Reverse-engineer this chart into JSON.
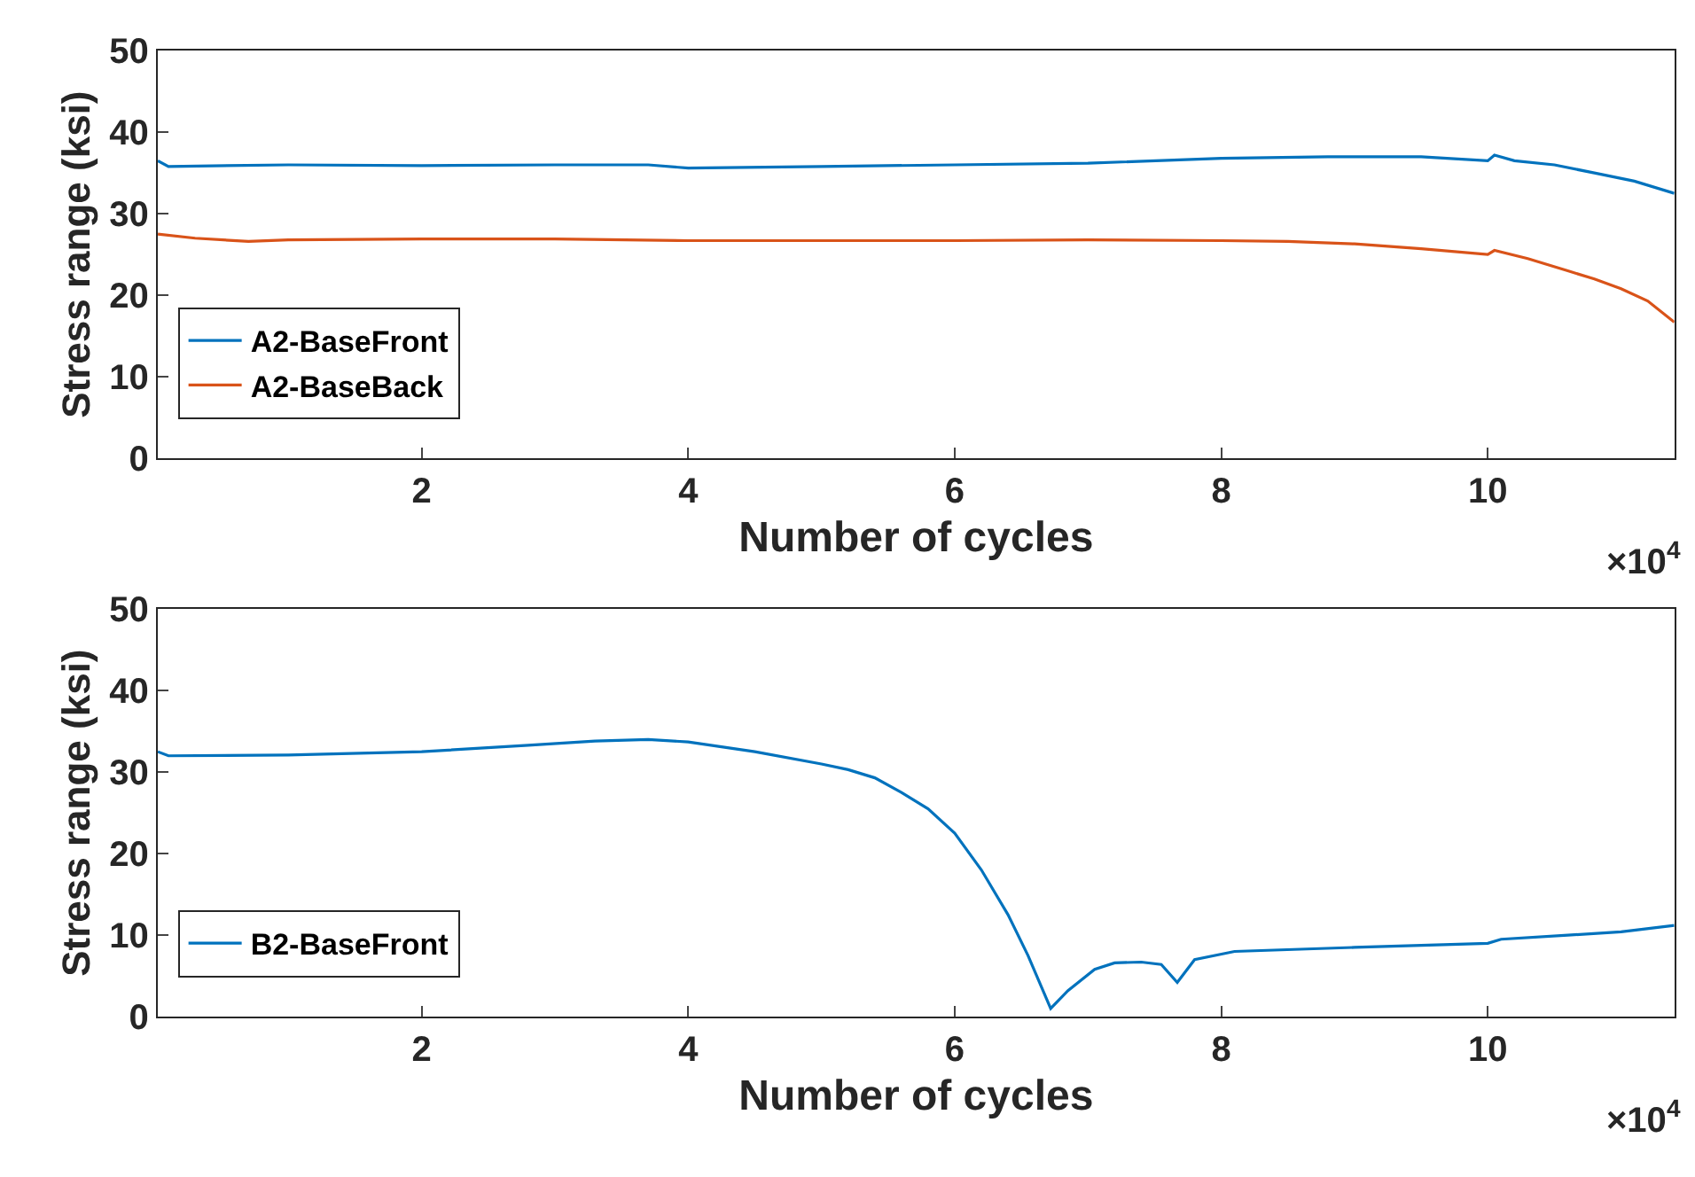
{
  "chart_data": [
    {
      "type": "line",
      "xlabel": "Number of cycles",
      "ylabel": "Stress range (ksi)",
      "xlim": [
        0.02,
        11.4
      ],
      "ylim": [
        0,
        50
      ],
      "xticks": [
        2,
        4,
        6,
        8,
        10
      ],
      "yticks": [
        0,
        10,
        20,
        30,
        40,
        50
      ],
      "legend": "bottom left",
      "annotations": [
        "×10$^{4}$"
      ],
      "series": [
        {
          "name": "A2-BaseFront",
          "color": "#0072bd",
          "x": [
            0.02,
            0.1,
            1,
            2,
            3,
            3.7,
            4,
            5,
            6,
            7,
            8,
            8.8,
            9.5,
            10,
            10.05,
            10.2,
            10.5,
            10.8,
            11.1,
            11.4
          ],
          "values": [
            36.5,
            35.8,
            36,
            35.9,
            36,
            36,
            35.6,
            35.8,
            36,
            36.2,
            36.8,
            37,
            37,
            36.5,
            37.2,
            36.5,
            36,
            35,
            34,
            32.5
          ]
        },
        {
          "name": "A2-BaseBack",
          "color": "#d95319",
          "x": [
            0.02,
            0.3,
            0.7,
            1,
            2,
            3,
            4,
            5,
            6,
            7,
            8,
            8.5,
            9,
            9.5,
            10,
            10.05,
            10.3,
            10.6,
            10.8,
            11,
            11.2,
            11.4
          ],
          "values": [
            27.5,
            27,
            26.6,
            26.8,
            26.9,
            26.9,
            26.7,
            26.7,
            26.7,
            26.8,
            26.7,
            26.6,
            26.3,
            25.7,
            25,
            25.5,
            24.5,
            23,
            22,
            20.8,
            19.3,
            16.7
          ]
        }
      ]
    },
    {
      "type": "line",
      "xlabel": "Number of cycles",
      "ylabel": "Stress range (ksi)",
      "xlim": [
        0.02,
        11.4
      ],
      "ylim": [
        0,
        50
      ],
      "xticks": [
        2,
        4,
        6,
        8,
        10
      ],
      "yticks": [
        0,
        10,
        20,
        30,
        40,
        50
      ],
      "legend": "bottom left",
      "annotations": [
        "×10$^{4}$"
      ],
      "series": [
        {
          "name": "B2-BaseFront",
          "color": "#0072bd",
          "x": [
            0.02,
            0.1,
            1,
            2,
            2.8,
            3.3,
            3.7,
            4,
            4.5,
            5,
            5.2,
            5.4,
            5.6,
            5.8,
            6,
            6.2,
            6.4,
            6.55,
            6.72,
            6.85,
            7.05,
            7.2,
            7.4,
            7.55,
            7.67,
            7.8,
            8.1,
            9,
            10,
            10.1,
            10.6,
            11,
            11.4
          ],
          "values": [
            32.5,
            32,
            32.1,
            32.5,
            33.3,
            33.8,
            34,
            33.7,
            32.5,
            31,
            30.3,
            29.3,
            27.5,
            25.5,
            22.5,
            18,
            12.5,
            7.5,
            1,
            3.2,
            5.8,
            6.6,
            6.7,
            6.4,
            4.2,
            7,
            8,
            8.5,
            9,
            9.5,
            10,
            10.4,
            11.2
          ]
        }
      ]
    }
  ]
}
